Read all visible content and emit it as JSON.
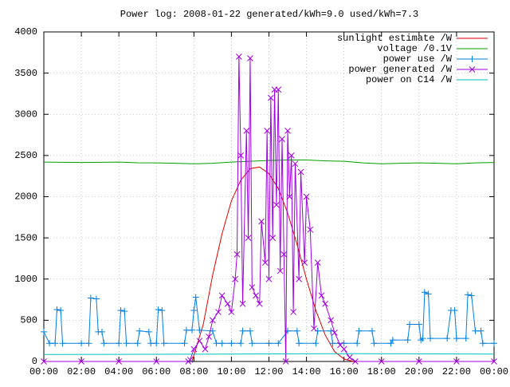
{
  "chart_data": {
    "type": "line",
    "title": "Power log: 2008-01-22 generated/kWh=9.0 used/kWh=7.3",
    "xlim": [
      0,
      24
    ],
    "xticks": [
      {
        "value": 0,
        "label": "00:00"
      },
      {
        "value": 2,
        "label": "02:00"
      },
      {
        "value": 4,
        "label": "04:00"
      },
      {
        "value": 6,
        "label": "06:00"
      },
      {
        "value": 8,
        "label": "08:00"
      },
      {
        "value": 10,
        "label": "10:00"
      },
      {
        "value": 12,
        "label": "12:00"
      },
      {
        "value": 14,
        "label": "14:00"
      },
      {
        "value": 16,
        "label": "16:00"
      },
      {
        "value": 18,
        "label": "18:00"
      },
      {
        "value": 20,
        "label": "20:00"
      },
      {
        "value": 22,
        "label": "22:00"
      },
      {
        "value": 24,
        "label": "00:00"
      }
    ],
    "ylim": [
      0,
      4000
    ],
    "yticks": [
      0,
      500,
      1000,
      1500,
      2000,
      2500,
      3000,
      3500,
      4000
    ],
    "grid": true,
    "legend": "top-right",
    "series": [
      {
        "name": "sunlight estimate /W",
        "color": "#e00000",
        "marker": "none",
        "x": [
          7.9,
          8.5,
          9,
          9.5,
          10,
          10.5,
          11,
          11.5,
          12,
          12.5,
          13,
          13.5,
          14,
          14.5,
          15,
          15.5,
          16,
          16.5
        ],
        "values": [
          0,
          450,
          1050,
          1550,
          1950,
          2200,
          2340,
          2360,
          2280,
          2100,
          1800,
          1420,
          1000,
          620,
          320,
          120,
          30,
          0
        ]
      },
      {
        "name": "voltage /0.1V",
        "color": "#00a000",
        "marker": "none",
        "x": [
          0,
          1,
          2,
          3,
          4,
          5,
          6,
          7,
          8,
          9,
          10,
          11,
          12,
          13,
          14,
          15,
          16,
          17,
          18,
          19,
          20,
          21,
          22,
          23,
          24
        ],
        "values": [
          2420,
          2418,
          2415,
          2418,
          2420,
          2412,
          2410,
          2405,
          2400,
          2405,
          2420,
          2430,
          2440,
          2445,
          2445,
          2435,
          2430,
          2410,
          2400,
          2405,
          2410,
          2405,
          2400,
          2410,
          2415
        ]
      },
      {
        "name": "power use /W",
        "color": "#0080e0",
        "marker": "plus",
        "x": [
          0,
          0.3,
          0.6,
          0.7,
          0.9,
          1,
          2,
          2.4,
          2.5,
          2.8,
          2.9,
          3.1,
          3.2,
          4,
          4.1,
          4.3,
          4.4,
          5,
          5.1,
          5.6,
          5.7,
          6,
          6.1,
          6.3,
          6.4,
          7.5,
          7.6,
          7.9,
          8,
          8.1,
          8.3,
          9,
          9.2,
          9.5,
          10,
          10.5,
          10.6,
          11,
          11.1,
          12,
          12.5,
          13,
          13.5,
          13.6,
          14.5,
          14.6,
          15.3,
          15.4,
          16,
          16.7,
          16.8,
          17.5,
          17.6,
          18.5,
          18.6,
          19.4,
          19.5,
          20,
          20.1,
          20.2,
          20.3,
          20.5,
          20.6,
          21.5,
          21.7,
          21.9,
          22,
          22.5,
          22.6,
          22.8,
          23,
          23.3,
          23.4,
          24
        ],
        "values": [
          360,
          220,
          220,
          630,
          620,
          220,
          220,
          220,
          770,
          760,
          360,
          360,
          220,
          220,
          620,
          610,
          220,
          220,
          370,
          360,
          220,
          220,
          630,
          620,
          220,
          220,
          380,
          380,
          620,
          780,
          380,
          370,
          220,
          220,
          220,
          220,
          370,
          370,
          220,
          220,
          220,
          370,
          370,
          220,
          220,
          370,
          370,
          220,
          220,
          220,
          370,
          370,
          220,
          220,
          260,
          260,
          450,
          450,
          260,
          280,
          840,
          820,
          280,
          280,
          620,
          620,
          280,
          280,
          810,
          800,
          370,
          370,
          220,
          220
        ]
      },
      {
        "name": "power generated /W",
        "color": "#a000e0",
        "marker": "cross",
        "x": [
          0,
          2,
          4,
          6,
          7.7,
          7.8,
          8,
          8.3,
          8.6,
          8.8,
          9,
          9.3,
          9.5,
          9.8,
          10,
          10.2,
          10.3,
          10.4,
          10.5,
          10.6,
          10.8,
          10.9,
          11,
          11.1,
          11.3,
          11.5,
          11.6,
          11.8,
          11.9,
          12,
          12.1,
          12.2,
          12.3,
          12.4,
          12.5,
          12.6,
          12.7,
          12.8,
          12.9,
          13,
          13.1,
          13.2,
          13.3,
          13.4,
          13.6,
          13.7,
          13.9,
          14,
          14.2,
          14.4,
          14.6,
          14.8,
          15,
          15.3,
          15.5,
          15.8,
          16,
          16.3,
          16.6,
          18,
          20,
          22,
          24
        ],
        "values": [
          0,
          0,
          0,
          0,
          0,
          20,
          150,
          250,
          150,
          300,
          500,
          600,
          800,
          700,
          600,
          1000,
          1300,
          3700,
          2500,
          700,
          2800,
          1500,
          3680,
          900,
          800,
          700,
          1700,
          1200,
          2800,
          1000,
          3200,
          1500,
          3300,
          1900,
          3300,
          1100,
          2700,
          1300,
          0,
          2800,
          2000,
          2500,
          600,
          2400,
          1000,
          2300,
          1200,
          2000,
          1600,
          400,
          1200,
          800,
          700,
          500,
          350,
          200,
          150,
          50,
          0,
          0,
          0,
          0,
          0
        ]
      },
      {
        "name": "power on C14 /W",
        "color": "#00c0c0",
        "marker": "none",
        "x": [
          0,
          8,
          16,
          24
        ],
        "values": [
          85,
          88,
          95,
          90
        ]
      }
    ]
  }
}
